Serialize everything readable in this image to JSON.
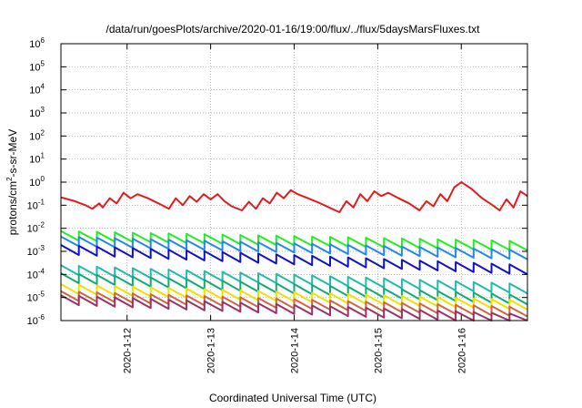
{
  "chart_data": {
    "type": "line",
    "title": "/data/run/goesPlots/archive/2020-01-16/19:00/flux/../flux/5daysMarsFluxes.txt",
    "xlabel": "Coordinated Universal Time (UTC)",
    "ylabel": "protons/cm2-s-sr-MeV",
    "ylabel_parts": {
      "before": "protons/cm",
      "sup": "2",
      "after": "-s-sr-MeV"
    },
    "y_scale": "log",
    "ylim": [
      1e-06,
      1000000.0
    ],
    "xlim": [
      "2020-01-11T05:00",
      "2020-01-16T19:00"
    ],
    "grid": true,
    "x_ticks": [
      {
        "date": "2020-01-12T00:00",
        "label": "2020-1-12"
      },
      {
        "date": "2020-01-13T00:00",
        "label": "2020-1-13"
      },
      {
        "date": "2020-01-14T00:00",
        "label": "2020-1-14"
      },
      {
        "date": "2020-01-15T00:00",
        "label": "2020-1-15"
      },
      {
        "date": "2020-01-16T00:00",
        "label": "2020-1-16"
      }
    ],
    "y_ticks": [
      {
        "value": 1e-06,
        "base": "10",
        "exp": "-6"
      },
      {
        "value": 1e-05,
        "base": "10",
        "exp": "-5"
      },
      {
        "value": 0.0001,
        "base": "10",
        "exp": "-4"
      },
      {
        "value": 0.001,
        "base": "10",
        "exp": "-3"
      },
      {
        "value": 0.01,
        "base": "10",
        "exp": "-2"
      },
      {
        "value": 0.1,
        "base": "10",
        "exp": "-1"
      },
      {
        "value": 1,
        "base": "10",
        "exp": "0"
      },
      {
        "value": 10,
        "base": "10",
        "exp": "1"
      },
      {
        "value": 100,
        "base": "10",
        "exp": "2"
      },
      {
        "value": 1000,
        "base": "10",
        "exp": "3"
      },
      {
        "value": 10000,
        "base": "10",
        "exp": "4"
      },
      {
        "value": 100000,
        "base": "10",
        "exp": "5"
      },
      {
        "value": 1000000,
        "base": "10",
        "exp": "6"
      }
    ],
    "series": [
      {
        "color": "#e41a1c",
        "x": [
          "2020-01-11T05:00",
          "2020-01-11T09:00",
          "2020-01-11T12:00",
          "2020-01-11T14:00",
          "2020-01-11T16:00",
          "2020-01-11T17:00",
          "2020-01-11T19:00",
          "2020-01-11T21:00",
          "2020-01-11T23:00",
          "2020-01-12T01:00",
          "2020-01-12T03:00",
          "2020-01-12T06:00",
          "2020-01-12T09:00",
          "2020-01-12T12:00",
          "2020-01-12T14:00",
          "2020-01-12T16:00",
          "2020-01-12T18:00",
          "2020-01-12T20:00",
          "2020-01-12T22:00",
          "2020-01-13T00:00",
          "2020-01-13T02:00",
          "2020-01-13T04:00",
          "2020-01-13T06:00",
          "2020-01-13T09:00",
          "2020-01-13T11:00",
          "2020-01-13T13:00",
          "2020-01-13T15:00",
          "2020-01-13T17:00",
          "2020-01-13T19:00",
          "2020-01-13T21:00",
          "2020-01-13T23:00",
          "2020-01-14T01:00",
          "2020-01-14T04:00",
          "2020-01-14T07:00",
          "2020-01-14T10:00",
          "2020-01-14T13:00",
          "2020-01-14T15:00",
          "2020-01-14T17:00",
          "2020-01-14T19:00",
          "2020-01-14T21:00",
          "2020-01-14T23:00",
          "2020-01-15T01:00",
          "2020-01-15T03:00",
          "2020-01-15T06:00",
          "2020-01-15T09:00",
          "2020-01-15T12:00",
          "2020-01-15T14:00",
          "2020-01-15T16:00",
          "2020-01-15T18:00",
          "2020-01-15T20:00",
          "2020-01-15T22:00",
          "2020-01-16T00:00",
          "2020-01-16T03:00",
          "2020-01-16T06:00",
          "2020-01-16T09:00",
          "2020-01-16T11:00",
          "2020-01-16T13:00",
          "2020-01-16T15:00",
          "2020-01-16T17:00",
          "2020-01-16T19:00"
        ],
        "y": [
          0.22,
          0.15,
          0.1,
          0.07,
          0.12,
          0.08,
          0.2,
          0.12,
          0.35,
          0.2,
          0.3,
          0.2,
          0.12,
          0.07,
          0.2,
          0.1,
          0.25,
          0.14,
          0.3,
          0.18,
          0.3,
          0.15,
          0.09,
          0.06,
          0.14,
          0.07,
          0.2,
          0.12,
          0.35,
          0.2,
          0.45,
          0.3,
          0.2,
          0.13,
          0.08,
          0.05,
          0.15,
          0.08,
          0.3,
          0.15,
          0.4,
          0.25,
          0.35,
          0.2,
          0.12,
          0.06,
          0.15,
          0.09,
          0.3,
          0.15,
          0.6,
          1.0,
          0.5,
          0.2,
          0.1,
          0.06,
          0.18,
          0.08,
          0.4,
          0.25
        ]
      },
      {
        "color": "#22ee22",
        "x": [
          "2020-01-11T05:00",
          "2020-01-16T19:00"
        ],
        "y": [
          0.006,
          0.0022
        ],
        "teeth": 26
      },
      {
        "color": "#2288ee",
        "x": [
          "2020-01-11T05:00",
          "2020-01-16T19:00"
        ],
        "y": [
          0.0035,
          0.0009
        ],
        "teeth": 26
      },
      {
        "color": "#1111cc",
        "x": [
          "2020-01-11T05:00",
          "2020-01-16T19:00"
        ],
        "y": [
          0.0015,
          0.0002
        ],
        "teeth": 26
      },
      {
        "color": "#22bbaa",
        "x": [
          "2020-01-11T05:00",
          "2020-01-16T19:00"
        ],
        "y": [
          0.0002,
          3e-05
        ],
        "teeth": 26
      },
      {
        "color": "#11aa77",
        "x": [
          "2020-01-11T05:00",
          "2020-01-16T19:00"
        ],
        "y": [
          9e-05,
          1e-05
        ],
        "teeth": 26
      },
      {
        "color": "#f0e000",
        "x": [
          "2020-01-11T05:00",
          "2020-01-16T19:00"
        ],
        "y": [
          3e-05,
          6e-06
        ],
        "teeth": 26
      },
      {
        "color": "#cc6644",
        "x": [
          "2020-01-11T05:00",
          "2020-01-16T19:00"
        ],
        "y": [
          1.5e-05,
          3e-06
        ],
        "teeth": 26
      },
      {
        "color": "#993366",
        "x": [
          "2020-01-11T05:00",
          "2020-01-16T19:00"
        ],
        "y": [
          1e-05,
          1.5e-06
        ],
        "teeth": 26
      }
    ]
  }
}
